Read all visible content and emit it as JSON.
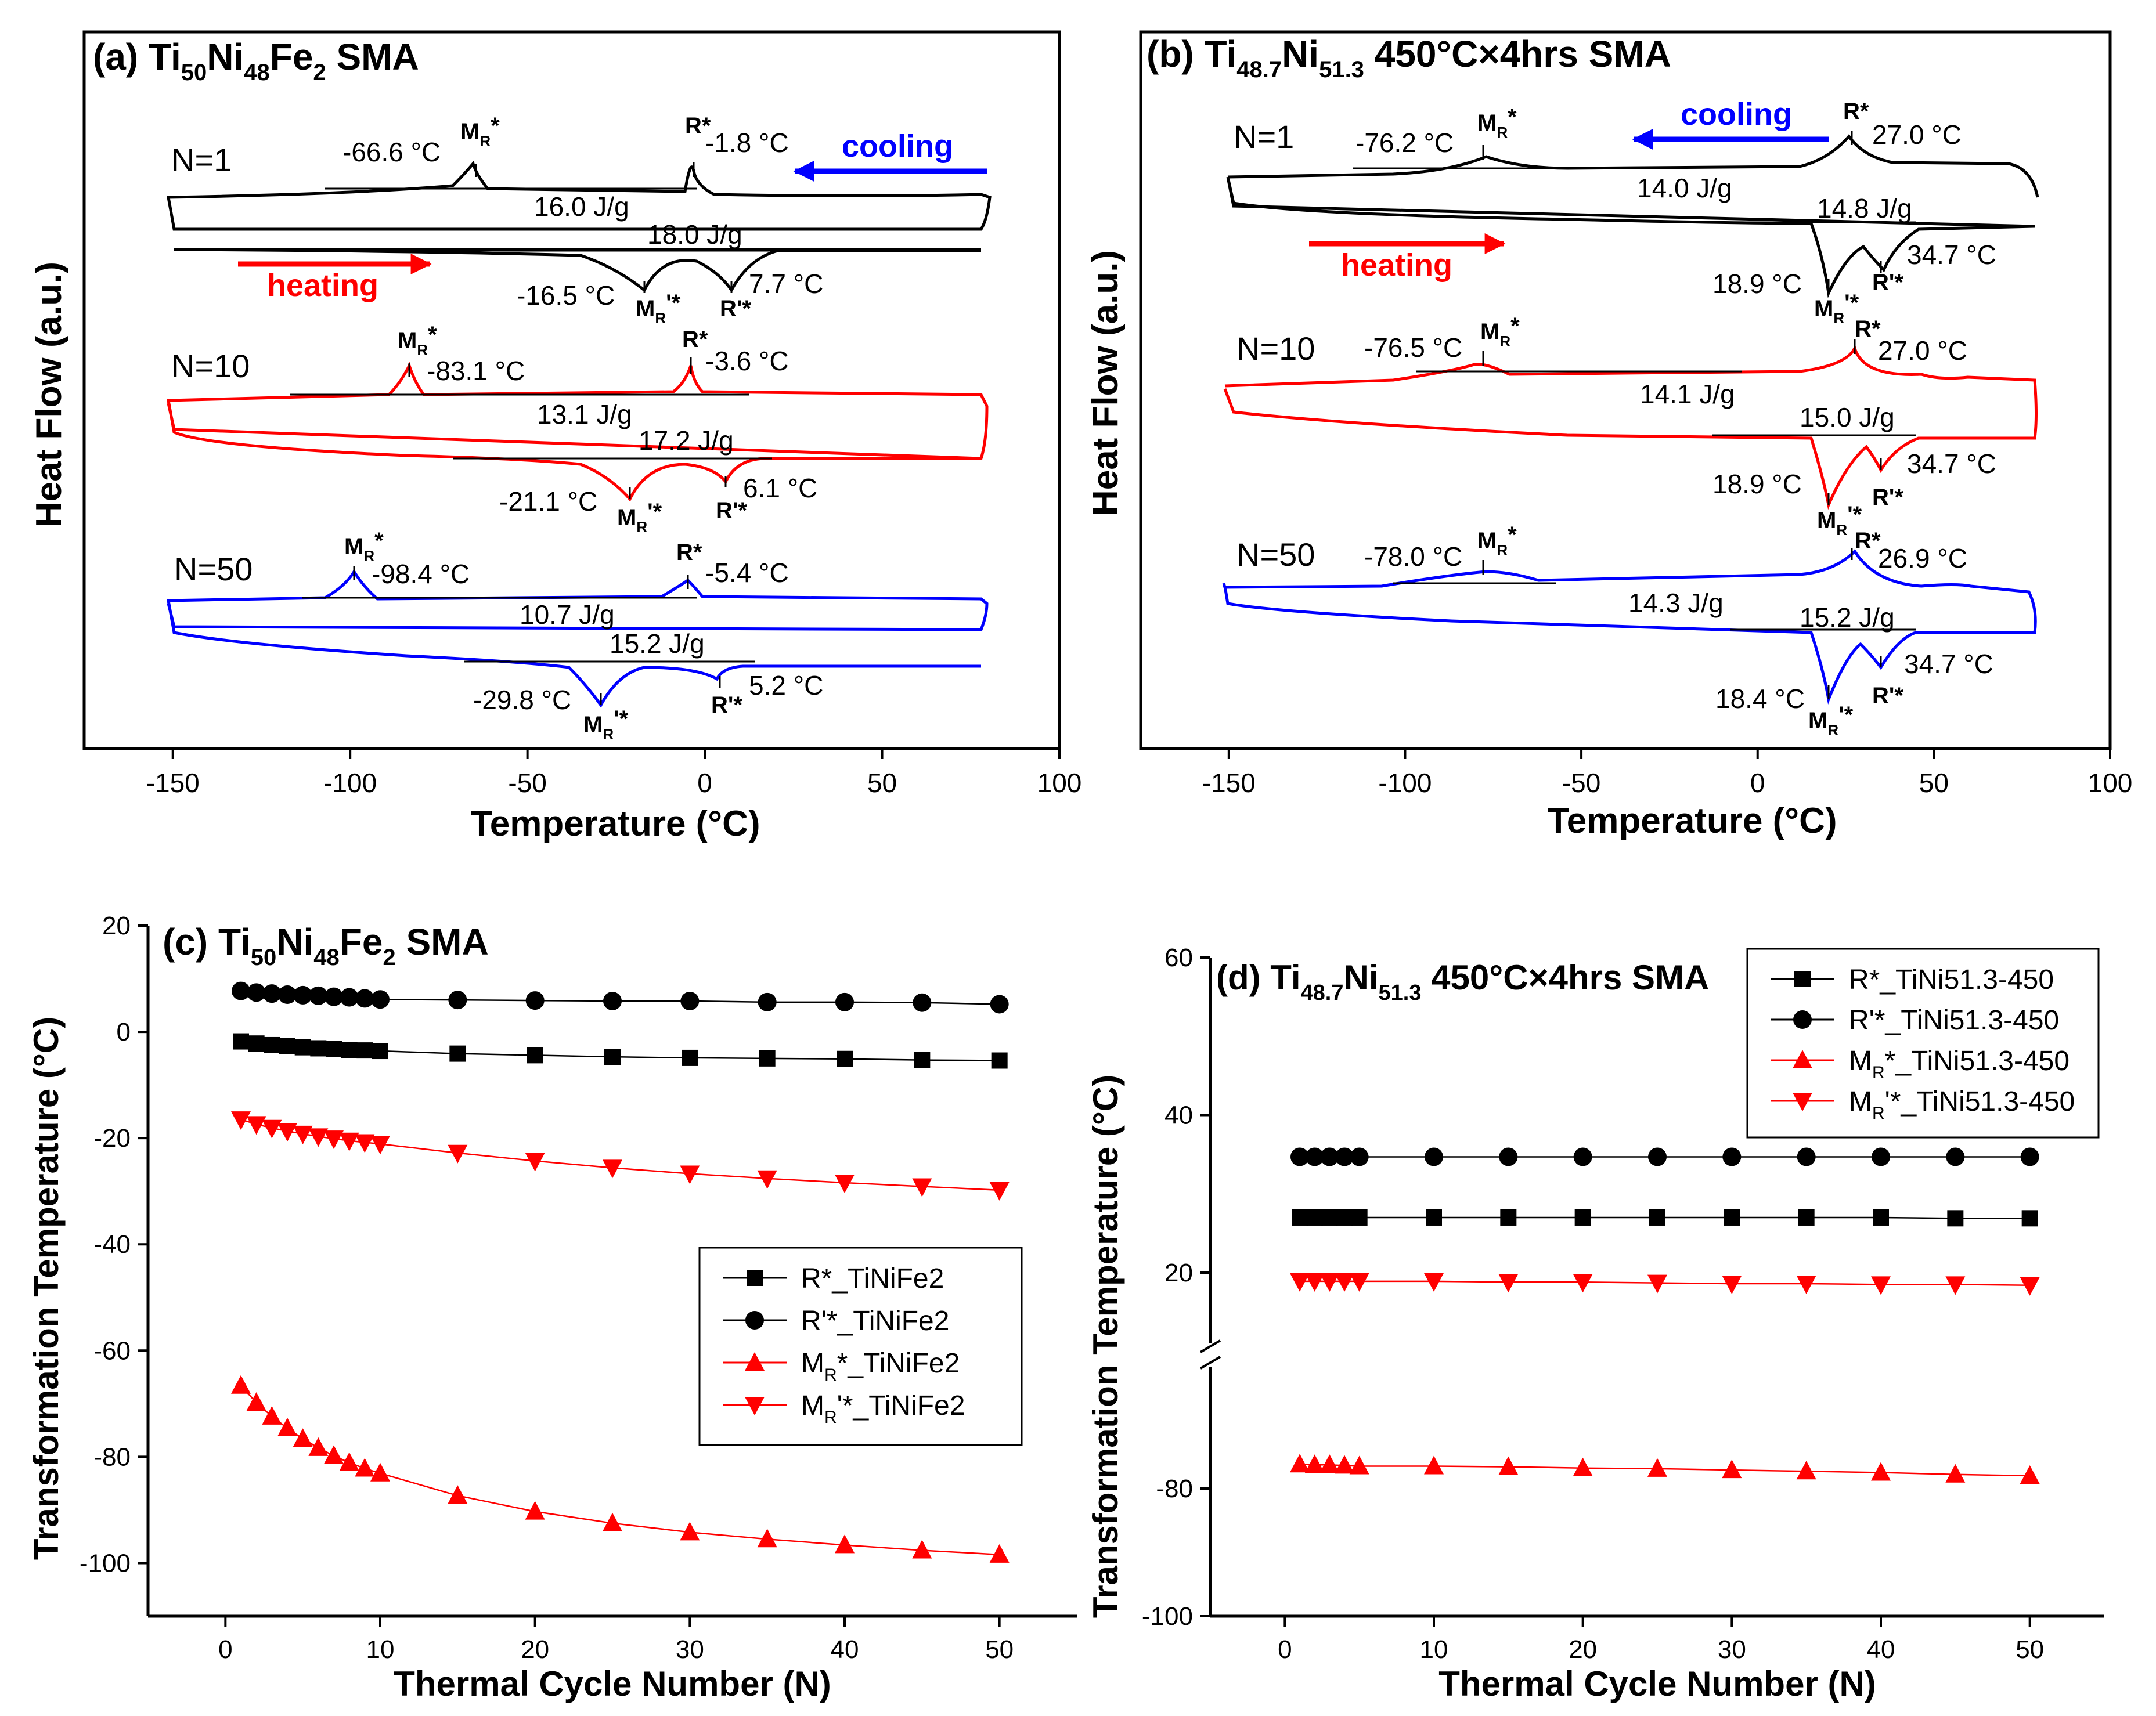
{
  "panels": {
    "a": {
      "title_prefix": "(a) Ti",
      "s1": "50",
      "e1": "Ni",
      "s2": "48",
      "e2": "Fe",
      "s3": "2",
      "suffix": " SMA"
    },
    "b": {
      "title_prefix": "(b) Ti",
      "s1": "48.7",
      "e1": "Ni",
      "s2": "51.3",
      "suffix": " 450°C×4hrs SMA"
    },
    "c": {
      "title_prefix": "(c) Ti",
      "s1": "50",
      "e1": "Ni",
      "s2": "48",
      "e2": "Fe",
      "s3": "2",
      "suffix": " SMA"
    },
    "d": {
      "title_prefix": "(d) Ti",
      "s1": "48.7",
      "e1": "Ni",
      "s2": "51.3",
      "suffix": " 450°C×4hrs SMA"
    }
  },
  "dsc_labels": {
    "ylabel": "Heat Flow (a.u.)",
    "xlabel": "Temperature (°C)",
    "xticks": [
      "-150",
      "-100",
      "-50",
      "0",
      "50",
      "100"
    ],
    "cooling": "cooling",
    "heating": "heating",
    "mr": "M",
    "mr_sub": "R",
    "mr_star": "*",
    "mr_prime_star": "'*",
    "r_star": "R*",
    "r_prime_star": "R'*"
  },
  "dsc_a": [
    {
      "cycle": "N=1",
      "mr_temp": "-66.6 °C",
      "r_temp": "-1.8 °C",
      "cool_enthalpy": "16.0 J/g",
      "heat_enthalpy": "18.0 J/g",
      "mrp_temp": "-16.5 °C",
      "rp_temp": "7.7 °C",
      "color": "#000000"
    },
    {
      "cycle": "N=10",
      "mr_temp": "-83.1 °C",
      "r_temp": "-3.6 °C",
      "cool_enthalpy": "13.1 J/g",
      "heat_enthalpy": "17.2 J/g",
      "mrp_temp": "-21.1 °C",
      "rp_temp": "6.1 °C",
      "color": "#ff0000"
    },
    {
      "cycle": "N=50",
      "mr_temp": "-98.4 °C",
      "r_temp": "-5.4 °C",
      "cool_enthalpy": "10.7 J/g",
      "heat_enthalpy": "15.2 J/g",
      "mrp_temp": "-29.8 °C",
      "rp_temp": "5.2 °C",
      "color": "#0000ff"
    }
  ],
  "dsc_b": [
    {
      "cycle": "N=1",
      "mr_temp": "-76.2 °C",
      "r_temp": "27.0 °C",
      "cool_enthalpy": "14.0 J/g",
      "heat_enthalpy": "14.8 J/g",
      "mrp_temp": "18.9 °C",
      "rp_temp": "34.7 °C",
      "color": "#000000"
    },
    {
      "cycle": "N=10",
      "mr_temp": "-76.5 °C",
      "r_temp": "27.0 °C",
      "cool_enthalpy": "14.1 J/g",
      "heat_enthalpy": "15.0 J/g",
      "mrp_temp": "18.9 °C",
      "rp_temp": "34.7 °C",
      "color": "#ff0000"
    },
    {
      "cycle": "N=50",
      "mr_temp": "-78.0 °C",
      "r_temp": "26.9 °C",
      "cool_enthalpy": "14.3 J/g",
      "heat_enthalpy": "15.2 J/g",
      "mrp_temp": "18.4 °C",
      "rp_temp": "34.7 °C",
      "color": "#0000ff"
    }
  ],
  "chart_data": [
    {
      "type": "line",
      "panel": "c",
      "xlabel": "Thermal Cycle Number (N)",
      "ylabel": "Transformation Temperature (°C)",
      "xlim": [
        -5,
        55
      ],
      "ylim": [
        -110,
        20
      ],
      "xticks": [
        0,
        10,
        20,
        30,
        40,
        50
      ],
      "yticks": [
        20,
        0,
        -20,
        -40,
        -60,
        -80,
        -100
      ],
      "legend_position": "middle-right",
      "series": [
        {
          "name": "R*_TiNiFe2",
          "marker": "square",
          "color": "#000000",
          "x": [
            1,
            2,
            3,
            4,
            5,
            6,
            7,
            8,
            9,
            10,
            15,
            20,
            25,
            30,
            35,
            40,
            45,
            50
          ],
          "values": [
            -1.8,
            -2.2,
            -2.5,
            -2.7,
            -2.9,
            -3.1,
            -3.2,
            -3.4,
            -3.5,
            -3.6,
            -4.1,
            -4.4,
            -4.7,
            -4.9,
            -5.0,
            -5.1,
            -5.3,
            -5.4
          ]
        },
        {
          "name": "R'*_TiNiFe2",
          "marker": "circle",
          "color": "#000000",
          "x": [
            1,
            2,
            3,
            4,
            5,
            6,
            7,
            8,
            9,
            10,
            15,
            20,
            25,
            30,
            35,
            40,
            45,
            50
          ],
          "values": [
            7.7,
            7.4,
            7.2,
            7.0,
            6.9,
            6.8,
            6.6,
            6.5,
            6.3,
            6.1,
            6.0,
            5.9,
            5.8,
            5.8,
            5.6,
            5.6,
            5.5,
            5.2
          ]
        },
        {
          "name": "M",
          "name_sub": "R",
          "name_suffix": "*_TiNiFe2",
          "marker": "triangle-up",
          "color": "#ff0000",
          "x": [
            1,
            2,
            3,
            4,
            5,
            6,
            7,
            8,
            9,
            10,
            15,
            20,
            25,
            30,
            35,
            40,
            45,
            50
          ],
          "values": [
            -66.6,
            -69.8,
            -72.4,
            -74.6,
            -76.6,
            -78.3,
            -79.8,
            -81.1,
            -82.2,
            -83.1,
            -87.3,
            -90.3,
            -92.5,
            -94.2,
            -95.5,
            -96.6,
            -97.6,
            -98.4
          ]
        },
        {
          "name": "M",
          "name_sub": "R",
          "name_suffix": "'*_TiNiFe2",
          "marker": "triangle-down",
          "color": "#ff0000",
          "x": [
            1,
            2,
            3,
            4,
            5,
            6,
            7,
            8,
            9,
            10,
            15,
            20,
            25,
            30,
            35,
            40,
            45,
            50
          ],
          "values": [
            -16.5,
            -17.4,
            -18.1,
            -18.7,
            -19.2,
            -19.7,
            -20.1,
            -20.5,
            -20.8,
            -21.1,
            -22.8,
            -24.3,
            -25.6,
            -26.7,
            -27.6,
            -28.4,
            -29.1,
            -29.8
          ]
        }
      ]
    },
    {
      "type": "line",
      "panel": "d",
      "xlabel": "Thermal Cycle Number (N)",
      "ylabel": "Transformation Temperature (°C)",
      "xlim": [
        -5,
        55
      ],
      "ylim": [
        -100,
        60
      ],
      "axis_break": "between 20 and -80",
      "xticks": [
        0,
        10,
        20,
        30,
        40,
        50
      ],
      "yticks": [
        60,
        40,
        20,
        -80,
        -100
      ],
      "legend_position": "top-right",
      "series": [
        {
          "name": "R*_TiNi51.3-450",
          "marker": "square",
          "color": "#000000",
          "x": [
            1,
            2,
            3,
            4,
            5,
            10,
            15,
            20,
            25,
            30,
            35,
            40,
            45,
            50
          ],
          "values": [
            27.0,
            27.0,
            27.0,
            27.0,
            27.0,
            27.0,
            27.0,
            27.0,
            27.0,
            27.0,
            27.0,
            27.0,
            26.9,
            26.9
          ]
        },
        {
          "name": "R'*_TiNi51.3-450",
          "marker": "circle",
          "color": "#000000",
          "x": [
            1,
            2,
            3,
            4,
            5,
            10,
            15,
            20,
            25,
            30,
            35,
            40,
            45,
            50
          ],
          "values": [
            34.7,
            34.7,
            34.7,
            34.7,
            34.7,
            34.7,
            34.7,
            34.7,
            34.7,
            34.7,
            34.7,
            34.7,
            34.7,
            34.7
          ]
        },
        {
          "name": "M",
          "name_sub": "R",
          "name_suffix": "*_TiNi51.3-450",
          "marker": "triangle-up",
          "color": "#ff0000",
          "x": [
            1,
            2,
            3,
            4,
            5,
            10,
            15,
            20,
            25,
            30,
            35,
            40,
            45,
            50
          ],
          "values": [
            -76.2,
            -76.3,
            -76.3,
            -76.4,
            -76.5,
            -76.5,
            -76.6,
            -76.8,
            -76.9,
            -77.1,
            -77.3,
            -77.5,
            -77.8,
            -78.0
          ]
        },
        {
          "name": "M",
          "name_sub": "R",
          "name_suffix": "'*_TiNi51.3-450",
          "marker": "triangle-down",
          "color": "#ff0000",
          "x": [
            1,
            2,
            3,
            4,
            5,
            10,
            15,
            20,
            25,
            30,
            35,
            40,
            45,
            50
          ],
          "values": [
            18.9,
            18.9,
            18.9,
            18.9,
            18.9,
            18.9,
            18.8,
            18.8,
            18.7,
            18.6,
            18.6,
            18.5,
            18.5,
            18.4
          ]
        }
      ]
    }
  ]
}
